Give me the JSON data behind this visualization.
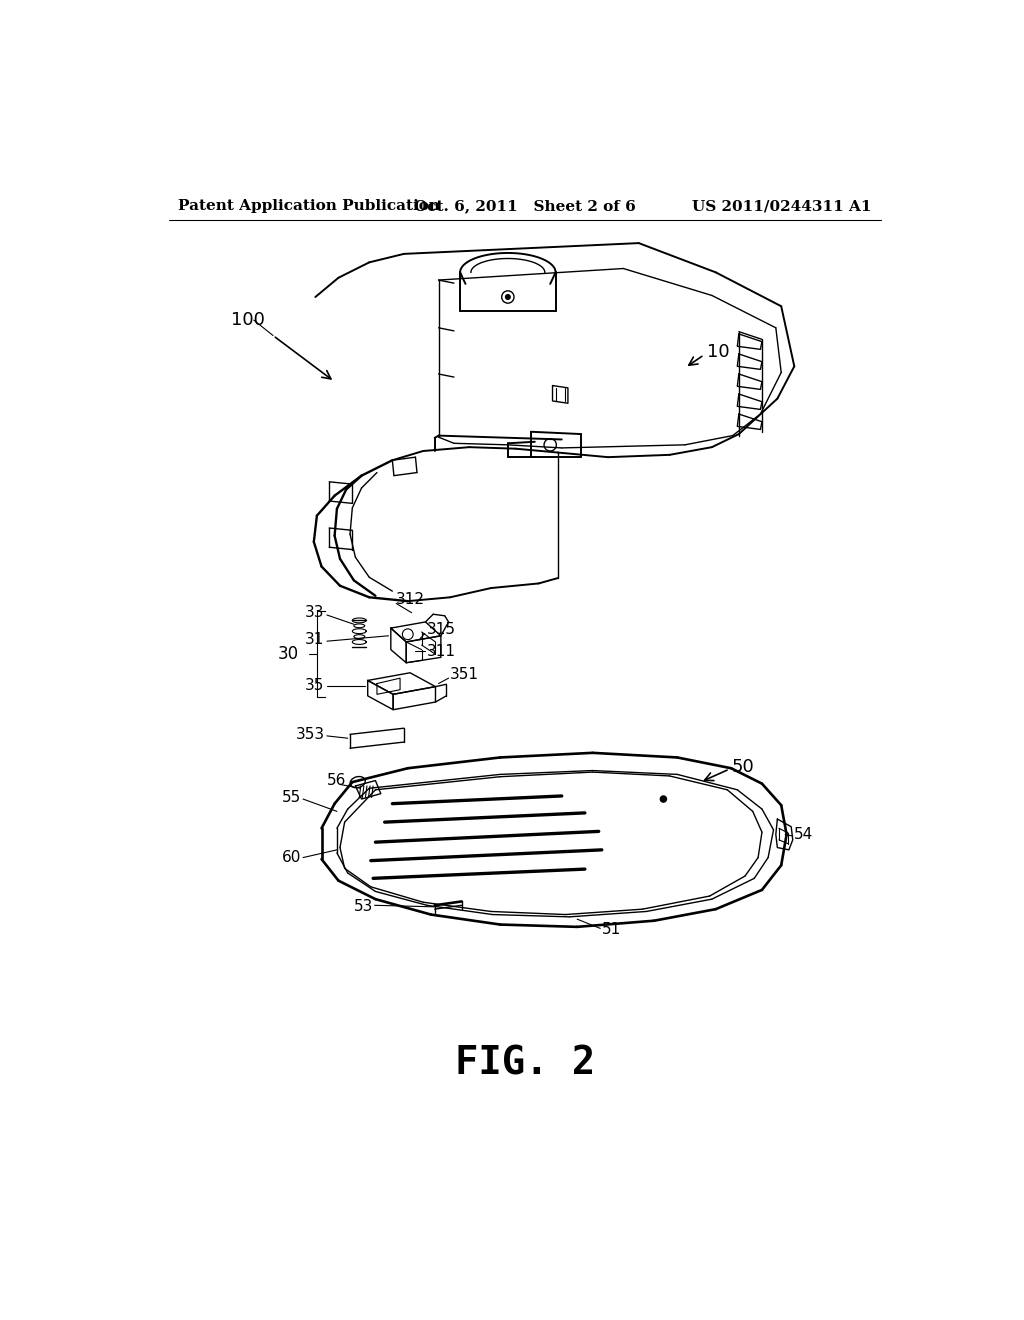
{
  "background_color": "#ffffff",
  "header_left": "Patent Application Publication",
  "header_center": "Oct. 6, 2011   Sheet 2 of 6",
  "header_right": "US 2011/0244311 A1",
  "figure_label": "FIG. 2"
}
